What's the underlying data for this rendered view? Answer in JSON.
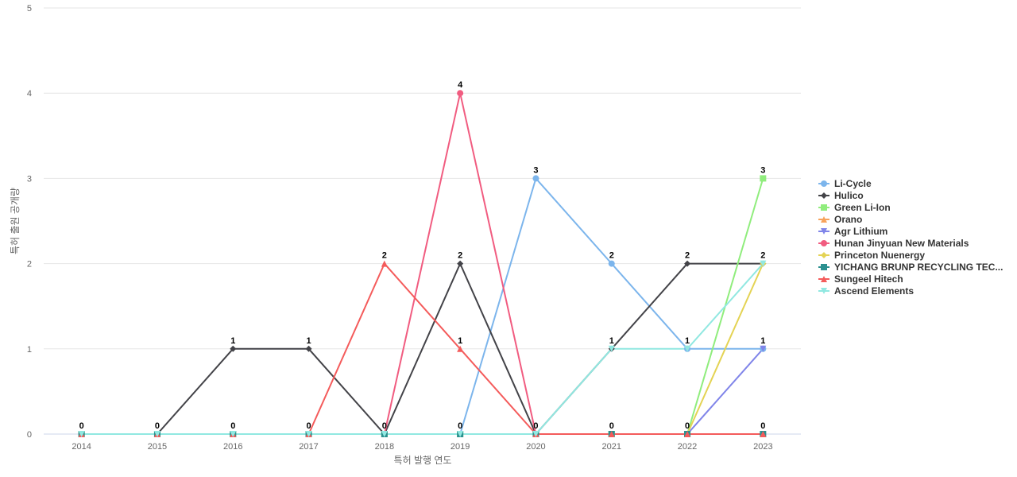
{
  "chart_data": {
    "type": "line",
    "title": "",
    "xlabel": "특허 발행 연도",
    "ylabel": "특허 출원 공개량",
    "x": [
      "2014",
      "2015",
      "2016",
      "2017",
      "2018",
      "2019",
      "2020",
      "2021",
      "2022",
      "2023"
    ],
    "ylim": [
      0,
      5
    ],
    "yticks": [
      0,
      1,
      2,
      3,
      4,
      5
    ],
    "grid": true,
    "legend": "right",
    "series": [
      {
        "name": "Li-Cycle",
        "color": "#7cb5ec",
        "marker": "circle",
        "values": [
          0,
          0,
          0,
          0,
          0,
          0,
          3,
          2,
          1,
          1
        ]
      },
      {
        "name": "Hulico",
        "color": "#434348",
        "marker": "diamond",
        "values": [
          0,
          0,
          1,
          1,
          0,
          2,
          0,
          1,
          2,
          2
        ]
      },
      {
        "name": "Green Li-Ion",
        "color": "#90ed7d",
        "marker": "square",
        "values": [
          0,
          0,
          0,
          0,
          0,
          0,
          0,
          0,
          0,
          3
        ]
      },
      {
        "name": "Orano",
        "color": "#f7a35c",
        "marker": "triangle",
        "values": [
          0,
          0,
          0,
          0,
          0,
          0,
          0,
          0,
          0,
          0
        ]
      },
      {
        "name": "Agr Lithium",
        "color": "#8085e9",
        "marker": "triangle-down",
        "values": [
          0,
          0,
          0,
          0,
          0,
          0,
          0,
          0,
          0,
          1
        ]
      },
      {
        "name": "Hunan Jinyuan New Materials",
        "color": "#f15c80",
        "marker": "circle",
        "values": [
          0,
          0,
          0,
          0,
          0,
          4,
          0,
          0,
          0,
          0
        ]
      },
      {
        "name": "Princeton Nuenergy",
        "color": "#e4d354",
        "marker": "diamond",
        "values": [
          0,
          0,
          0,
          0,
          0,
          0,
          0,
          0,
          0,
          2
        ]
      },
      {
        "name": "YICHANG BRUNP RECYCLING TEC...",
        "color": "#2b908f",
        "marker": "square",
        "values": [
          0,
          0,
          0,
          0,
          0,
          0,
          0,
          0,
          0,
          0
        ]
      },
      {
        "name": "Sungeel Hitech",
        "color": "#f45b5b",
        "marker": "triangle",
        "values": [
          0,
          0,
          0,
          0,
          2,
          1,
          0,
          0,
          0,
          0
        ]
      },
      {
        "name": "Ascend Elements",
        "color": "#91e8e1",
        "marker": "triangle-down",
        "values": [
          0,
          0,
          0,
          0,
          0,
          0,
          0,
          1,
          1,
          2
        ]
      }
    ],
    "data_labels": [
      {
        "x": "2014",
        "value": 0
      },
      {
        "x": "2015",
        "value": 0
      },
      {
        "x": "2016",
        "value": 1
      },
      {
        "x": "2016",
        "value": 0
      },
      {
        "x": "2017",
        "value": 1
      },
      {
        "x": "2017",
        "value": 0
      },
      {
        "x": "2018",
        "value": 2
      },
      {
        "x": "2018",
        "value": 0
      },
      {
        "x": "2019",
        "value": 4
      },
      {
        "x": "2019",
        "value": 2
      },
      {
        "x": "2019",
        "value": 1
      },
      {
        "x": "2019",
        "value": 0
      },
      {
        "x": "2020",
        "value": 3
      },
      {
        "x": "2020",
        "value": 0
      },
      {
        "x": "2021",
        "value": 2
      },
      {
        "x": "2021",
        "value": 1
      },
      {
        "x": "2021",
        "value": 0
      },
      {
        "x": "2022",
        "value": 2
      },
      {
        "x": "2022",
        "value": 1
      },
      {
        "x": "2022",
        "value": 0
      },
      {
        "x": "2023",
        "value": 3
      },
      {
        "x": "2023",
        "value": 2
      },
      {
        "x": "2023",
        "value": 1
      },
      {
        "x": "2023",
        "value": 0
      }
    ]
  }
}
